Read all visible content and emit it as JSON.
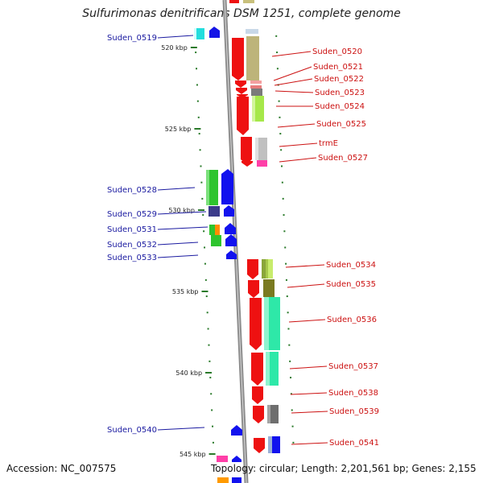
{
  "header": {
    "title": "Sulfurimonas denitrificans DSM 1251, complete genome"
  },
  "footer": {
    "accession": "Accession: NC_007575",
    "summary": "Topology: circular; Length: 2,201,561 bp; Genes: 2,155"
  },
  "colors": {
    "left_label": "#1a1aa0",
    "right_label": "#cc1111",
    "tick": "#2a7a2a",
    "backbone": "#8c8c8c"
  },
  "ticks": [
    {
      "kbp": 520,
      "label": "520 kbp"
    },
    {
      "kbp": 525,
      "label": "525 kbp"
    },
    {
      "kbp": 530,
      "label": "530 kbp"
    },
    {
      "kbp": 535,
      "label": "535 kbp"
    },
    {
      "kbp": 540,
      "label": "540 kbp"
    },
    {
      "kbp": 545,
      "label": "545 kbp"
    }
  ],
  "genes_left": [
    {
      "name": "Suden_0519",
      "kbp": 519.8
    },
    {
      "name": "Suden_0528",
      "kbp": 528.6
    },
    {
      "name": "Suden_0529",
      "kbp": 530.0
    },
    {
      "name": "Suden_0531",
      "kbp": 531.1
    },
    {
      "name": "Suden_0532",
      "kbp": 532.0
    },
    {
      "name": "Suden_0533",
      "kbp": 532.8
    },
    {
      "name": "Suden_0540",
      "kbp": 543.4
    }
  ],
  "genes_right": [
    {
      "name": "Suden_0520",
      "kbp": 520.2
    },
    {
      "name": "Suden_0521",
      "kbp": 520.9
    },
    {
      "name": "Suden_0522",
      "kbp": 521.6
    },
    {
      "name": "Suden_0523",
      "kbp": 522.4
    },
    {
      "name": "Suden_0524",
      "kbp": 523.3
    },
    {
      "name": "Suden_0525",
      "kbp": 524.4
    },
    {
      "name": "trmE",
      "kbp": 525.8
    },
    {
      "name": "Suden_0527",
      "kbp": 526.8
    },
    {
      "name": "Suden_0534",
      "kbp": 533.6
    },
    {
      "name": "Suden_0535",
      "kbp": 534.8
    },
    {
      "name": "Suden_0536",
      "kbp": 537.0
    },
    {
      "name": "Suden_0537",
      "kbp": 539.9
    },
    {
      "name": "Suden_0538",
      "kbp": 541.5
    },
    {
      "name": "Suden_0539",
      "kbp": 542.6
    },
    {
      "name": "Suden_0541",
      "kbp": 544.5
    }
  ]
}
